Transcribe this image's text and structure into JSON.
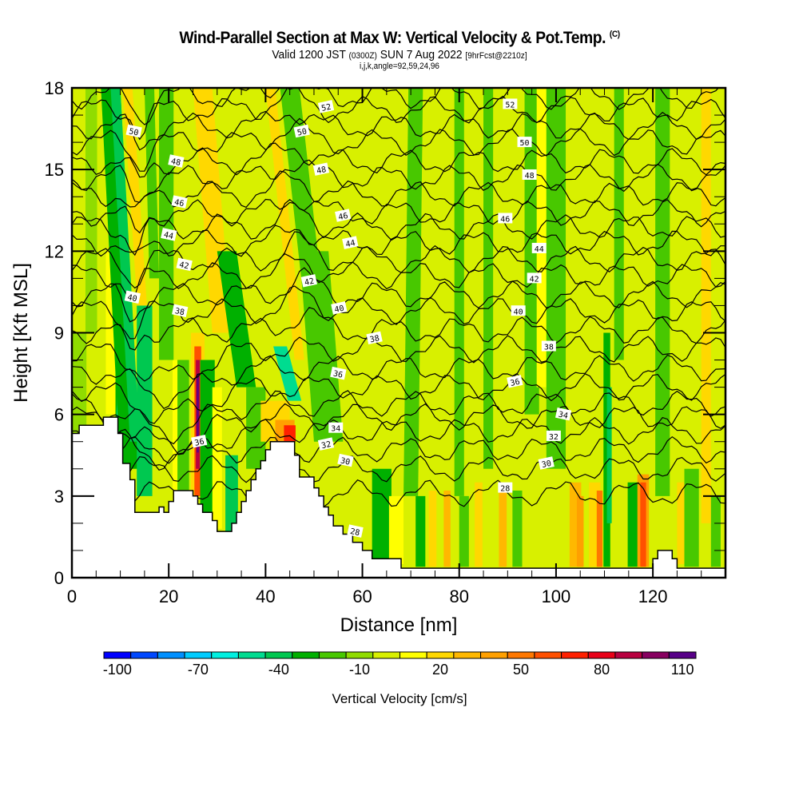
{
  "header": {
    "title": "Wind-Parallel Section at Max W: Vertical Velocity & Pot.Temp.",
    "copyright": "(C)",
    "valid_prefix": "Valid 1200 JST",
    "valid_utc": "(0300Z)",
    "valid_date": "SUN 7 Aug 2022",
    "forecast": "[9hrFcst@2210z]",
    "indices": "i,j,k,angle=92,59,24,96"
  },
  "chart_data": {
    "type": "heatmap",
    "title": "Wind-Parallel Section at Max W: Vertical Velocity & Pot.Temp.",
    "xlabel": "Distance [nm]",
    "ylabel": "Height [Kft MSL]",
    "xlim": [
      0,
      135
    ],
    "ylim": [
      0,
      18
    ],
    "x_ticks": [
      "0",
      "20",
      "40",
      "60",
      "80",
      "100",
      "120"
    ],
    "x_tick_values": [
      0,
      20,
      40,
      60,
      80,
      100,
      120
    ],
    "y_ticks": [
      "0",
      "3",
      "6",
      "9",
      "12",
      "15",
      "18"
    ],
    "y_tick_values": [
      0,
      3,
      6,
      9,
      12,
      15,
      18
    ],
    "x_minor_step": 5,
    "y_minor_step": 1,
    "grid": false,
    "colorbar": {
      "title": "Vertical Velocity [cm/s]",
      "levels": [
        -100,
        -90,
        -80,
        -70,
        -60,
        -50,
        -40,
        -30,
        -20,
        -10,
        0,
        10,
        20,
        30,
        40,
        50,
        60,
        70,
        80,
        90,
        100,
        110,
        120
      ],
      "tick_labels": [
        "-100",
        "-70",
        "-40",
        "-10",
        "20",
        "50",
        "80",
        "110"
      ],
      "tick_values": [
        -100,
        -70,
        -40,
        -10,
        20,
        50,
        80,
        110
      ],
      "colors": [
        "#0000ff",
        "#0048ff",
        "#0090ff",
        "#00ccff",
        "#00f0e0",
        "#00dc90",
        "#00c850",
        "#00b000",
        "#48c800",
        "#90dc00",
        "#d8f000",
        "#ffff00",
        "#ffd800",
        "#ffb800",
        "#ffa000",
        "#ff7800",
        "#ff5000",
        "#ff2000",
        "#e80018",
        "#b80040",
        "#880060",
        "#580088"
      ],
      "placement": "bottom"
    },
    "contours": {
      "field": "Potential Temperature",
      "interval": 2,
      "levels": [
        28,
        30,
        32,
        34,
        36,
        38,
        40,
        42,
        44,
        46,
        48,
        50,
        52
      ]
    },
    "contour_labels": [
      {
        "text": "52",
        "x": 52.5,
        "y": 17.3
      },
      {
        "text": "52",
        "x": 90.5,
        "y": 17.4
      },
      {
        "text": "50",
        "x": 12.8,
        "y": 16.4
      },
      {
        "text": "50",
        "x": 47.5,
        "y": 16.4
      },
      {
        "text": "50",
        "x": 93.5,
        "y": 16.0
      },
      {
        "text": "48",
        "x": 21.5,
        "y": 15.3
      },
      {
        "text": "48",
        "x": 51.5,
        "y": 15.0
      },
      {
        "text": "48",
        "x": 94.5,
        "y": 14.8
      },
      {
        "text": "46",
        "x": 22.2,
        "y": 13.8
      },
      {
        "text": "46",
        "x": 56.0,
        "y": 13.3
      },
      {
        "text": "46",
        "x": 89.5,
        "y": 13.2
      },
      {
        "text": "44",
        "x": 20.0,
        "y": 12.6
      },
      {
        "text": "44",
        "x": 57.5,
        "y": 12.3
      },
      {
        "text": "44",
        "x": 96.5,
        "y": 12.1
      },
      {
        "text": "42",
        "x": 23.2,
        "y": 11.5
      },
      {
        "text": "42",
        "x": 49.0,
        "y": 10.9
      },
      {
        "text": "42",
        "x": 95.5,
        "y": 11.0
      },
      {
        "text": "40",
        "x": 12.5,
        "y": 10.3
      },
      {
        "text": "40",
        "x": 55.2,
        "y": 9.9
      },
      {
        "text": "40",
        "x": 92.2,
        "y": 9.8
      },
      {
        "text": "38",
        "x": 22.3,
        "y": 9.8
      },
      {
        "text": "38",
        "x": 62.5,
        "y": 8.8
      },
      {
        "text": "38",
        "x": 98.5,
        "y": 8.5
      },
      {
        "text": "36",
        "x": 55.0,
        "y": 7.5
      },
      {
        "text": "36",
        "x": 91.5,
        "y": 7.2
      },
      {
        "text": "34",
        "x": 54.5,
        "y": 5.5
      },
      {
        "text": "34",
        "x": 101.5,
        "y": 6.0
      },
      {
        "text": "32",
        "x": 52.5,
        "y": 4.9
      },
      {
        "text": "32",
        "x": 99.5,
        "y": 5.2
      },
      {
        "text": "30",
        "x": 56.5,
        "y": 4.3
      },
      {
        "text": "30",
        "x": 98.0,
        "y": 4.2
      },
      {
        "text": "28",
        "x": 89.5,
        "y": 3.3
      },
      {
        "text": "28",
        "x": 58.5,
        "y": 1.7
      },
      {
        "text": "36",
        "x": 26.3,
        "y": 5.0
      }
    ]
  }
}
